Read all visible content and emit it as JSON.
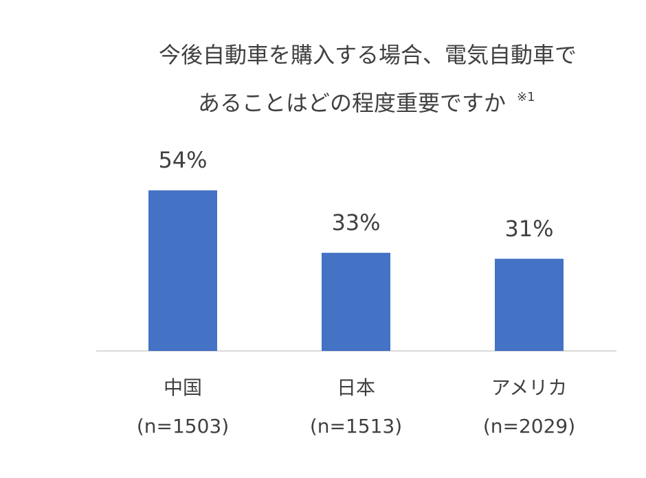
{
  "chart_data": {
    "type": "bar",
    "title": [
      "今後自動車を購入する場合、電気自動車で",
      "あることはどの程度重要ですか"
    ],
    "title_note": "※1",
    "categories": [
      "中国",
      "日本",
      "アメリカ"
    ],
    "sample_sizes": [
      "(n=1503)",
      "(n=1513)",
      "(n=2029)"
    ],
    "values": [
      54,
      33,
      31
    ],
    "value_labels": [
      "54%",
      "33%",
      "31%"
    ],
    "color": "#4472c4"
  }
}
